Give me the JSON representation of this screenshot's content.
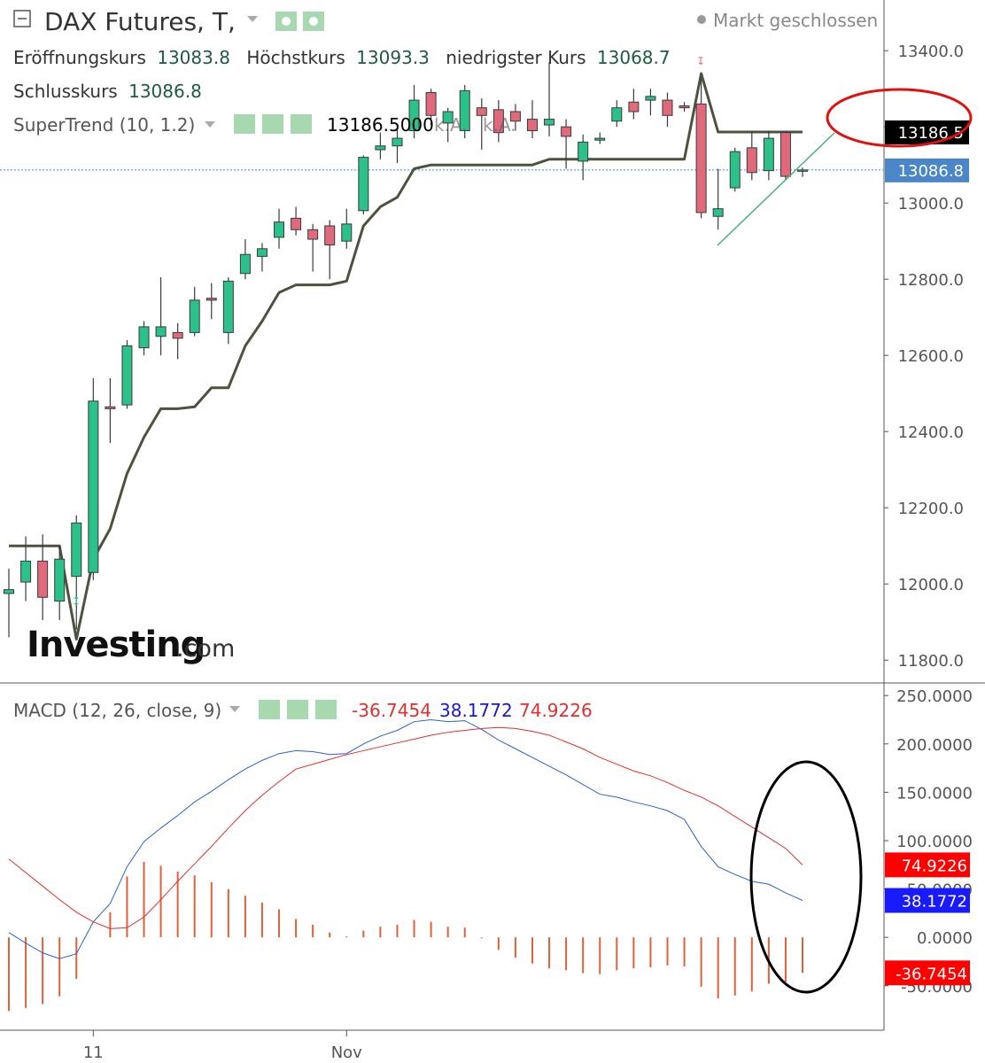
{
  "chart_data": [
    {
      "type": "candlestick",
      "title": "DAX Futures, T,",
      "status": "Markt geschlossen",
      "readout_labels": [
        "Eröffnungskurs",
        "Höchstkurs",
        "niedrigster Kurs",
        "Schlusskurs"
      ],
      "readout_values": [
        13083.8,
        13093.3,
        13068.7,
        13086.8
      ],
      "watermark": "Investing",
      "watermark_suffix": ".com",
      "categories": [
        null,
        null,
        null,
        null,
        null,
        "11",
        null,
        null,
        null,
        null,
        null,
        null,
        null,
        null,
        null,
        null,
        null,
        null,
        null,
        null,
        "Nov",
        null,
        null,
        null,
        null,
        null,
        null,
        null,
        null,
        null,
        null,
        null,
        null,
        null,
        null,
        null,
        null,
        null,
        null,
        null,
        null,
        null,
        null,
        null,
        null,
        null,
        null,
        null
      ],
      "open": [
        11975,
        12005,
        12060,
        11955,
        12020,
        12030,
        12465,
        12470,
        12620,
        12650,
        12660,
        12660,
        12750,
        12660,
        12815,
        12860,
        12910,
        12960,
        12930,
        12940,
        12900,
        12980,
        13140,
        13150,
        13190,
        13290,
        13210,
        13190,
        13250,
        13245,
        13240,
        13220,
        13205,
        13200,
        13110,
        13165,
        13215,
        13265,
        13270,
        13270,
        13255,
        13260,
        12965,
        13040,
        13145,
        13085,
        13185,
        13083.8
      ],
      "high": [
        12040,
        12125,
        12130,
        12100,
        12180,
        12540,
        12540,
        12640,
        12690,
        12805,
        12685,
        12780,
        12790,
        12805,
        12905,
        12895,
        12985,
        12990,
        12945,
        12955,
        12985,
        13125,
        13185,
        13200,
        13310,
        13300,
        13250,
        13310,
        13275,
        13270,
        13260,
        13270,
        13370,
        13220,
        13180,
        13185,
        13270,
        13300,
        13300,
        13290,
        13265,
        13325,
        13090,
        13145,
        13190,
        13190,
        13190,
        13093.3
      ],
      "low": [
        11860,
        11955,
        11905,
        11905,
        11880,
        12010,
        12370,
        12460,
        12600,
        12600,
        12590,
        12650,
        12695,
        12630,
        12800,
        12820,
        12880,
        12915,
        12820,
        12800,
        12880,
        12970,
        13115,
        13105,
        13170,
        13205,
        13160,
        13170,
        13140,
        13160,
        13190,
        13170,
        13175,
        13090,
        13060,
        13155,
        13200,
        13220,
        13230,
        13200,
        13240,
        12960,
        12930,
        13030,
        13060,
        13060,
        13060,
        13068.7
      ],
      "close": [
        11985,
        12060,
        11965,
        12065,
        12160,
        12480,
        12460,
        12625,
        12675,
        12675,
        12645,
        12745,
        12745,
        12795,
        12865,
        12880,
        12950,
        12930,
        12905,
        12890,
        12945,
        13120,
        13150,
        13170,
        13270,
        13230,
        13240,
        13295,
        13230,
        13185,
        13215,
        13190,
        13220,
        13175,
        13160,
        13170,
        13250,
        13240,
        13280,
        13230,
        13250,
        12975,
        12985,
        13135,
        13080,
        13170,
        13070,
        13086.8
      ],
      "up_color": "#2cc08b",
      "down_color": "#e06a7c",
      "series": [
        {
          "name": "SuperTrend (10, 1.2)",
          "color": "#4b5340",
          "values": [
            12100,
            12100,
            12100,
            12100,
            11855,
            12065,
            12145,
            12290,
            12385,
            12460,
            12460,
            12465,
            12515,
            12515,
            12625,
            12690,
            12765,
            12785,
            12785,
            12785,
            12795,
            12940,
            12990,
            13015,
            13090,
            13100,
            13100,
            13100,
            13100,
            13100,
            13100,
            13100,
            13115,
            13115,
            13115,
            13115,
            13115,
            13115,
            13115,
            13115,
            13115,
            13340,
            13186.5,
            13186.5,
            13186.5,
            13186.5,
            13186.5,
            13186.5
          ]
        }
      ],
      "supertrend_readout": {
        "value": 13186.5,
        "label": "13186.5000"
      },
      "na_labels": [
        "k.A.",
        "k.A."
      ],
      "last_price_color": "#4a86c8",
      "ylim": [
        11740,
        13533
      ],
      "yticks": [
        {
          "value": 11800,
          "label": "11800.0"
        },
        {
          "value": 12000,
          "label": "12000.0"
        },
        {
          "value": 12200,
          "label": "12200.0"
        },
        {
          "value": 12400,
          "label": "12400.0"
        },
        {
          "value": 12600,
          "label": "12600.0"
        },
        {
          "value": 12800,
          "label": "12800.0"
        },
        {
          "value": 13000,
          "label": "13000.0"
        },
        {
          "value": 13200,
          "label": "13200.0"
        },
        {
          "value": 13400,
          "label": "13400.0"
        }
      ]
    },
    {
      "type": "macd",
      "title": "MACD (12, 26, close, 9)",
      "series": [
        {
          "name": "Histogram",
          "color": "#e0603a",
          "values": [
            -76,
            -73,
            -69,
            -61,
            -43,
            0,
            26,
            63,
            78,
            74,
            68,
            64,
            57,
            50,
            43,
            36,
            29,
            19,
            13,
            5,
            1,
            7,
            11,
            13,
            18,
            16,
            11,
            10,
            -1,
            -13,
            -21,
            -27,
            -32,
            -34,
            -37,
            -38,
            -34,
            -32,
            -31,
            -29,
            -30,
            -51,
            -63,
            -60,
            -56,
            -48,
            -46,
            -36.7454
          ]
        },
        {
          "name": "MACD",
          "color": "#2f5fd0",
          "values": [
            5,
            -6,
            -16,
            -22,
            -17,
            16,
            35,
            73,
            99,
            113,
            126,
            140,
            151,
            163,
            174,
            183,
            190,
            193,
            192,
            189,
            190,
            200,
            208,
            214,
            223,
            225,
            223,
            224,
            215,
            204,
            195,
            186,
            177,
            168,
            158,
            148,
            145,
            140,
            136,
            131,
            122,
            94,
            73,
            65,
            58,
            55,
            46,
            38.1772
          ]
        },
        {
          "name": "Signal",
          "color": "#e03030",
          "values": [
            81,
            67,
            53,
            39,
            26,
            16,
            9,
            10,
            21,
            39,
            58,
            76,
            94,
            113,
            131,
            147,
            161,
            174,
            179,
            184,
            189,
            193,
            197,
            201,
            205,
            209,
            212,
            214,
            216,
            217,
            216,
            213,
            209,
            202,
            195,
            186,
            179,
            172,
            167,
            160,
            152,
            145,
            136,
            125,
            114,
            103,
            92,
            74.9226
          ]
        }
      ],
      "ylim": [
        -96,
        263
      ],
      "yticks": [
        {
          "value": -50,
          "label": "-50.0000"
        },
        {
          "value": 0,
          "label": "0.0000"
        },
        {
          "value": 50,
          "label": "50.0000"
        },
        {
          "value": 100,
          "label": "100.0000"
        },
        {
          "value": 150,
          "label": "150.0000"
        },
        {
          "value": 200,
          "label": "200.0000"
        },
        {
          "value": 250,
          "label": "250.0000"
        }
      ]
    }
  ]
}
